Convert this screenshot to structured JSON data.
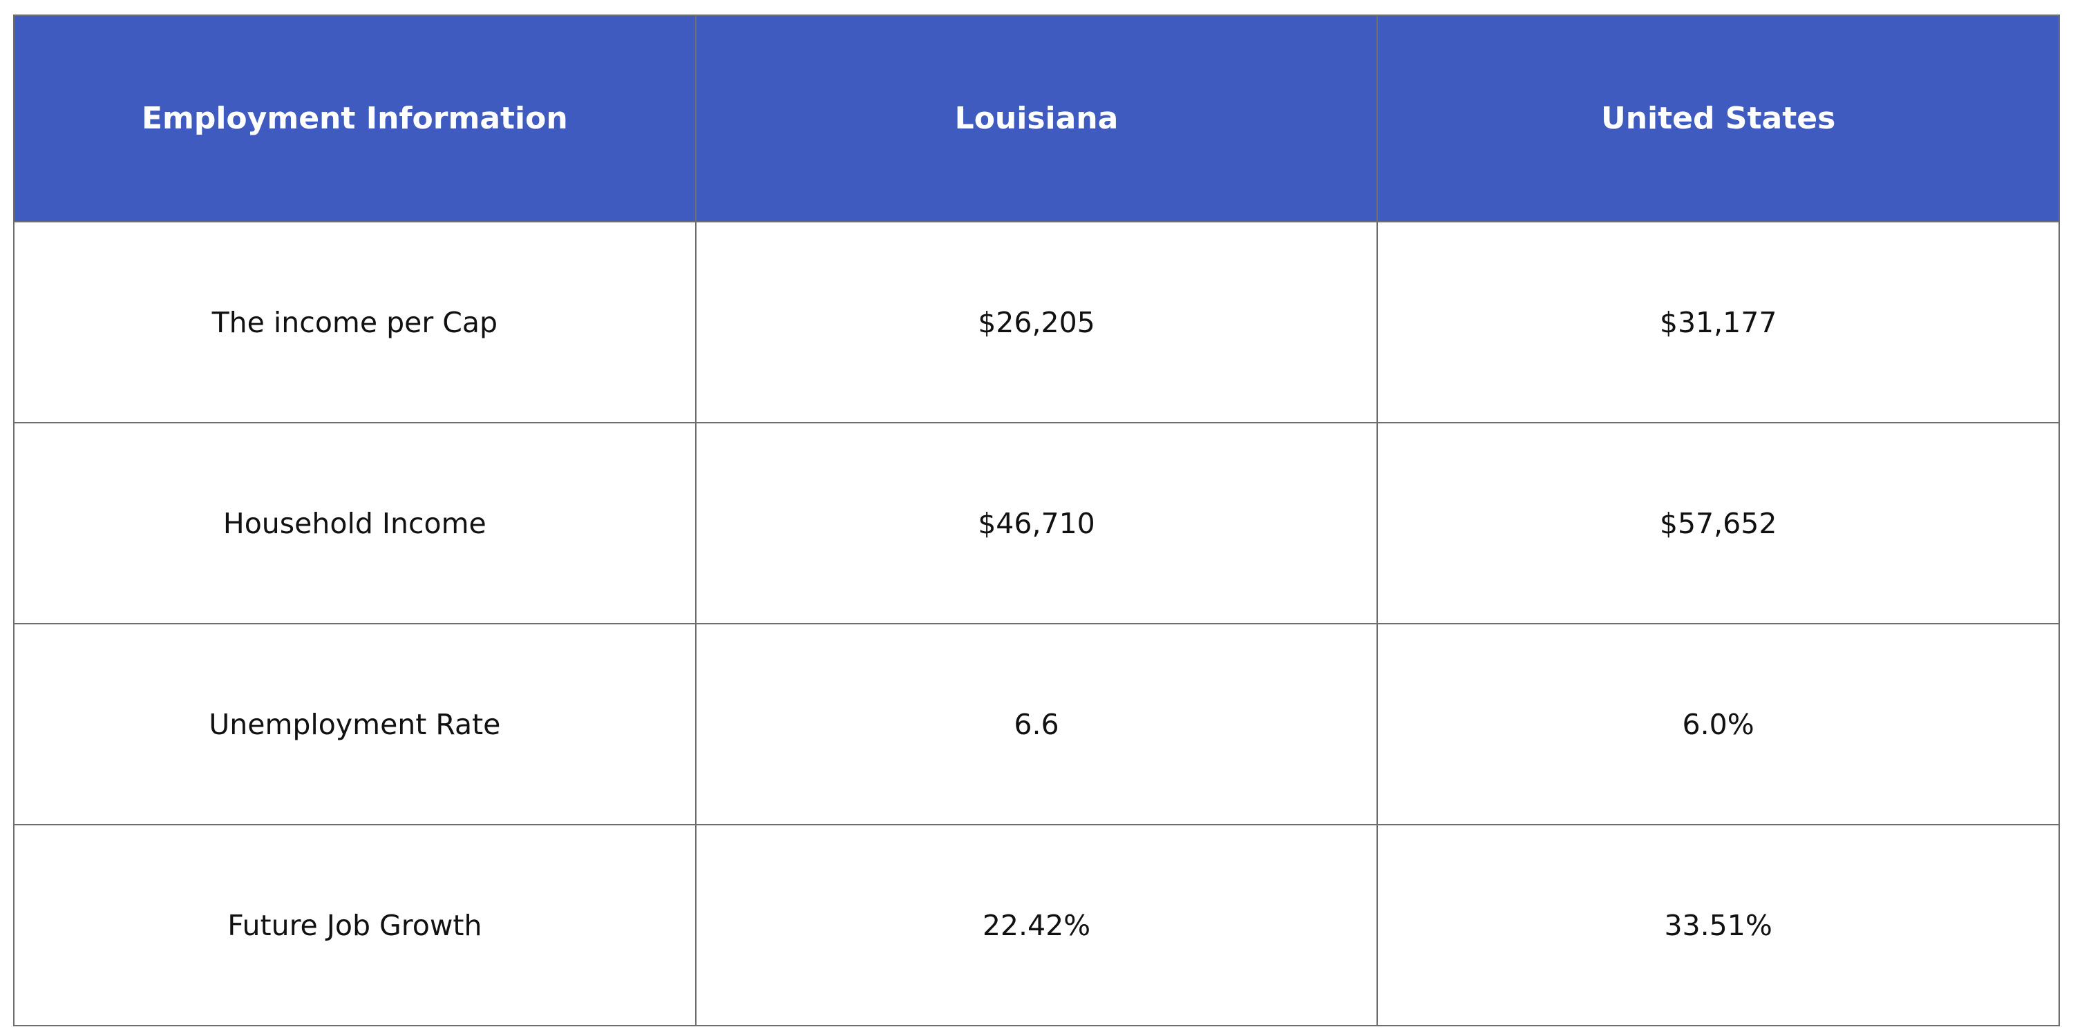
{
  "table": {
    "header": [
      "Employment Information",
      "Louisiana",
      "United States"
    ],
    "rows": [
      [
        "The income per Cap",
        "$26,205",
        "$31,177"
      ],
      [
        "Household Income",
        "$46,710",
        "$57,652"
      ],
      [
        "Unemployment Rate",
        "6.6",
        "6.0%"
      ],
      [
        "Future Job Growth",
        "22.42%",
        "33.51%"
      ]
    ]
  }
}
